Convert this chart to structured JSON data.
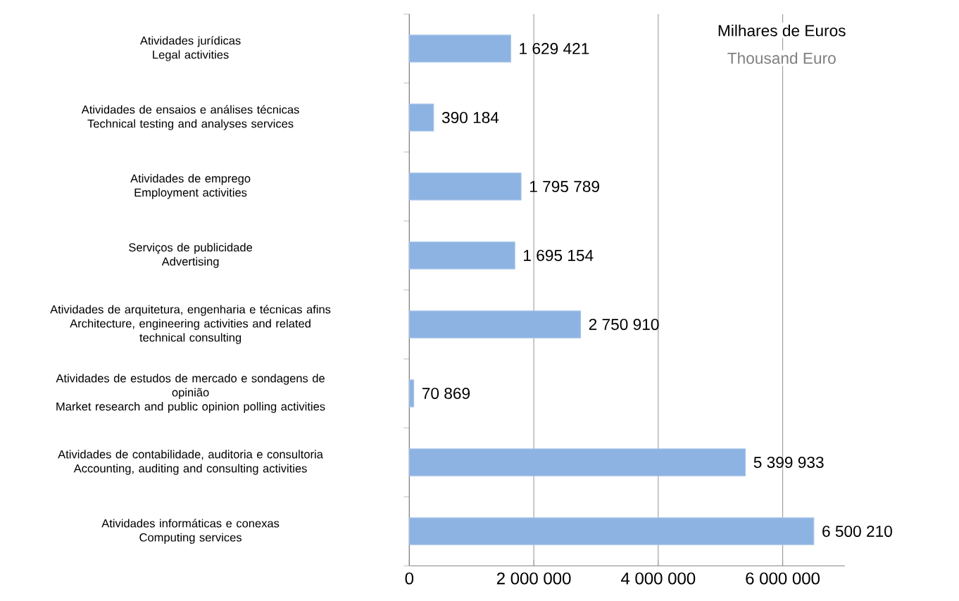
{
  "chart_data": {
    "type": "bar",
    "orientation": "horizontal",
    "categories": [
      "Atividades jurídicas\nLegal activities",
      "Atividades de ensaios e análises técnicas\nTechnical testing and analyses services",
      "Atividades de emprego\nEmployment activities",
      "Serviços de publicidade\nAdvertising",
      "Atividades de arquitetura, engenharia e técnicas afins\nArchitecture, engineering activities and related\ntechnical consulting",
      "Atividades de estudos de mercado e sondagens de\nopinião\nMarket research and public opinion polling activities",
      "Atividades de contabilidade, auditoria e consultoria\nAccounting, auditing and consulting activities",
      "Atividades informáticas e conexas\nComputing services"
    ],
    "values": [
      1629421,
      390184,
      1795789,
      1695154,
      2750910,
      70869,
      5399933,
      6500210
    ],
    "value_labels": [
      "1 629 421",
      "390 184",
      "1 795 789",
      "1 695 154",
      "2 750 910",
      "70 869",
      "5 399 933",
      "6 500 210"
    ],
    "color": "#8db3e2",
    "xlim": [
      0,
      7000000
    ],
    "xticks": [
      0,
      {
        "value": 2000000,
        "label": "2 000 000"
      },
      {
        "value": 4000000,
        "label": "4 000 000"
      },
      {
        "value": 6000000,
        "label": "6 000 000"
      }
    ],
    "grid": "x",
    "annotations": [
      "Milhares de Euros",
      "Thousand Euro"
    ]
  }
}
